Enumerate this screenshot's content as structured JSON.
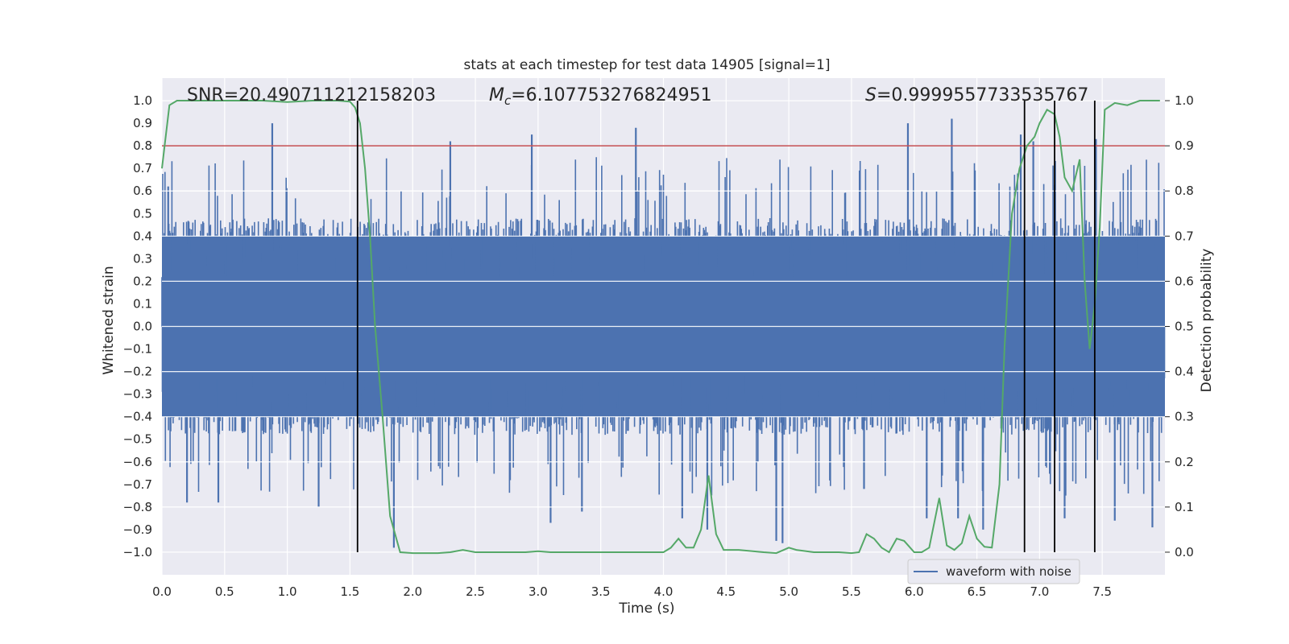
{
  "chart_data": {
    "type": "line",
    "title": "stats at each timestep for test data 14905 [signal=1]",
    "xlabel": "Time (s)",
    "ylabel": "Whitened strain",
    "y2label": "Detection probability",
    "xlim": [
      0,
      8
    ],
    "ylim": [
      -1.1,
      1.1
    ],
    "y2lim": [
      -0.05,
      1.05
    ],
    "x_ticks": [
      0.0,
      0.5,
      1.0,
      1.5,
      2.0,
      2.5,
      3.0,
      3.5,
      4.0,
      4.5,
      5.0,
      5.5,
      6.0,
      6.5,
      7.0,
      7.5
    ],
    "x_tick_labels": [
      "0.0",
      "0.5",
      "1.0",
      "1.5",
      "2.0",
      "2.5",
      "3.0",
      "3.5",
      "4.0",
      "4.5",
      "5.0",
      "5.5",
      "6.0",
      "6.5",
      "7.0",
      "7.5"
    ],
    "y_ticks": [
      -1.0,
      -0.9,
      -0.8,
      -0.7,
      -0.6,
      -0.5,
      -0.4,
      -0.3,
      -0.2,
      -0.1,
      0.0,
      0.1,
      0.2,
      0.3,
      0.4,
      0.5,
      0.6,
      0.7,
      0.8,
      0.9,
      1.0
    ],
    "y_tick_labels": [
      "−1.0",
      "−0.9",
      "−0.8",
      "−0.7",
      "−0.6",
      "−0.5",
      "−0.4",
      "−0.3",
      "−0.2",
      "−0.1",
      "0.0",
      "0.1",
      "0.2",
      "0.3",
      "0.4",
      "0.5",
      "0.6",
      "0.7",
      "0.8",
      "0.9",
      "1.0"
    ],
    "y2_ticks": [
      0.0,
      0.1,
      0.2,
      0.3,
      0.4,
      0.5,
      0.6,
      0.7,
      0.8,
      0.9,
      1.0
    ],
    "y2_tick_labels": [
      "0.0",
      "0.1",
      "0.2",
      "0.3",
      "0.4",
      "0.5",
      "0.6",
      "0.7",
      "0.8",
      "0.9",
      "1.0"
    ],
    "annotations": {
      "snr": "SNR=20.490711212158203",
      "mc_symbol": "M",
      "mc_sub": "c",
      "mc_value": "=6.107753276824951",
      "s_symbol": "S",
      "s_value": "=0.9999557733535767"
    },
    "legend": {
      "label": "waveform with noise",
      "position": "lower-right"
    },
    "threshold_y2": 0.9,
    "vertical_lines_x": [
      1.56,
      6.88,
      7.12,
      7.44
    ],
    "series": [
      {
        "name": "waveform with noise",
        "color": "#4c72b0",
        "kind": "noise",
        "x_range": [
          0,
          8
        ],
        "typical_amplitude": [
          -0.48,
          0.48
        ],
        "peaks_x": [
          0.05,
          0.2,
          0.45,
          0.88,
          1.25,
          1.85,
          2.3,
          2.95,
          3.1,
          3.35,
          3.78,
          4.15,
          4.35,
          4.9,
          4.95,
          5.6,
          5.95,
          6.1,
          6.3,
          6.35,
          6.55,
          6.85,
          6.95,
          7.2,
          7.45,
          7.6,
          7.9
        ],
        "peaks_y": [
          0.62,
          -0.78,
          -0.78,
          0.9,
          -0.8,
          -0.98,
          0.82,
          0.85,
          -0.87,
          -0.82,
          0.88,
          -0.85,
          -0.9,
          -0.95,
          -0.96,
          -0.72,
          0.9,
          -0.85,
          0.92,
          -0.85,
          -0.9,
          0.85,
          0.82,
          -0.85,
          0.83,
          -0.86,
          -0.89
        ]
      },
      {
        "name": "detection probability",
        "color": "#55a868",
        "axis": "y2",
        "x": [
          0.0,
          0.06,
          0.12,
          0.2,
          0.3,
          0.5,
          0.8,
          1.0,
          1.2,
          1.4,
          1.5,
          1.54,
          1.58,
          1.62,
          1.66,
          1.7,
          1.76,
          1.82,
          1.9,
          2.0,
          2.2,
          2.3,
          2.4,
          2.5,
          2.7,
          2.9,
          3.0,
          3.1,
          3.3,
          3.5,
          3.8,
          4.0,
          4.06,
          4.12,
          4.18,
          4.24,
          4.3,
          4.36,
          4.42,
          4.48,
          4.6,
          4.8,
          4.9,
          4.96,
          5.0,
          5.06,
          5.2,
          5.4,
          5.5,
          5.56,
          5.62,
          5.68,
          5.74,
          5.8,
          5.86,
          5.92,
          6.0,
          6.06,
          6.12,
          6.2,
          6.26,
          6.32,
          6.38,
          6.44,
          6.5,
          6.56,
          6.62,
          6.68,
          6.72,
          6.78,
          6.84,
          6.9,
          6.96,
          7.0,
          7.06,
          7.12,
          7.16,
          7.2,
          7.26,
          7.32,
          7.36,
          7.4,
          7.44,
          7.48,
          7.52,
          7.6,
          7.7,
          7.8,
          7.96
        ],
        "y": [
          0.85,
          0.99,
          1.0,
          1.0,
          1.0,
          1.0,
          1.0,
          0.997,
          1.0,
          1.0,
          0.998,
          0.985,
          0.95,
          0.85,
          0.7,
          0.5,
          0.3,
          0.08,
          0.0,
          -0.002,
          -0.002,
          0.0,
          0.005,
          0.0,
          0.0,
          0.0,
          0.002,
          0.0,
          0.0,
          0.0,
          0.0,
          0.0,
          0.01,
          0.03,
          0.01,
          0.01,
          0.05,
          0.17,
          0.04,
          0.005,
          0.005,
          0.0,
          -0.002,
          0.005,
          0.01,
          0.005,
          0.0,
          0.0,
          -0.002,
          0.0,
          0.04,
          0.03,
          0.01,
          0.0,
          0.03,
          0.025,
          0.0,
          0.0,
          0.01,
          0.12,
          0.015,
          0.005,
          0.02,
          0.08,
          0.03,
          0.012,
          0.01,
          0.15,
          0.45,
          0.75,
          0.85,
          0.9,
          0.92,
          0.95,
          0.98,
          0.97,
          0.92,
          0.83,
          0.8,
          0.87,
          0.6,
          0.45,
          0.55,
          0.72,
          0.98,
          0.995,
          0.99,
          1.0,
          1.0
        ]
      }
    ],
    "colors": {
      "axes_bg": "#eaeaf2",
      "grid": "#ffffff",
      "threshold": "#c44e52",
      "vline": "#000000"
    }
  }
}
